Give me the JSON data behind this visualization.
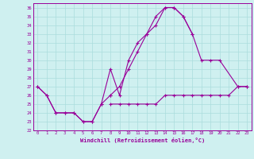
{
  "xlabel": "Windchill (Refroidissement éolien,°C)",
  "background_color": "#cff0f0",
  "grid_color": "#aadddd",
  "line_color": "#990099",
  "xlim": [
    -0.5,
    23.5
  ],
  "ylim": [
    22,
    36.5
  ],
  "yticks": [
    22,
    23,
    24,
    25,
    26,
    27,
    28,
    29,
    30,
    31,
    32,
    33,
    34,
    35,
    36
  ],
  "xticks": [
    0,
    1,
    2,
    3,
    4,
    5,
    6,
    7,
    8,
    9,
    10,
    11,
    12,
    13,
    14,
    15,
    16,
    17,
    18,
    19,
    20,
    21,
    22,
    23
  ],
  "lines": [
    {
      "x": [
        0,
        1,
        2,
        3,
        4,
        5,
        6,
        7,
        8,
        9,
        10,
        11,
        12,
        13,
        14,
        15,
        16,
        17
      ],
      "y": [
        27,
        26,
        24,
        24,
        24,
        23,
        23,
        25,
        29,
        26,
        30,
        32,
        33,
        35,
        36,
        36,
        35,
        33
      ]
    },
    {
      "x": [
        0,
        1,
        2,
        3,
        4,
        5,
        6,
        7,
        8
      ],
      "y": [
        27,
        26,
        24,
        24,
        24,
        23,
        23,
        25,
        26
      ]
    },
    {
      "x": [
        8,
        9,
        10,
        11,
        12,
        13,
        14,
        15,
        16,
        17,
        18,
        19,
        20,
        22,
        23
      ],
      "y": [
        26,
        27,
        29,
        31,
        33,
        34,
        36,
        36,
        35,
        33,
        30,
        30,
        30,
        27,
        27
      ]
    },
    {
      "x": [
        8,
        9,
        10,
        11,
        12,
        13,
        14,
        15,
        16,
        17,
        18,
        19,
        20,
        21,
        22,
        23
      ],
      "y": [
        25,
        25,
        25,
        25,
        25,
        25,
        26,
        26,
        26,
        26,
        26,
        26,
        26,
        26,
        27,
        27
      ]
    }
  ]
}
